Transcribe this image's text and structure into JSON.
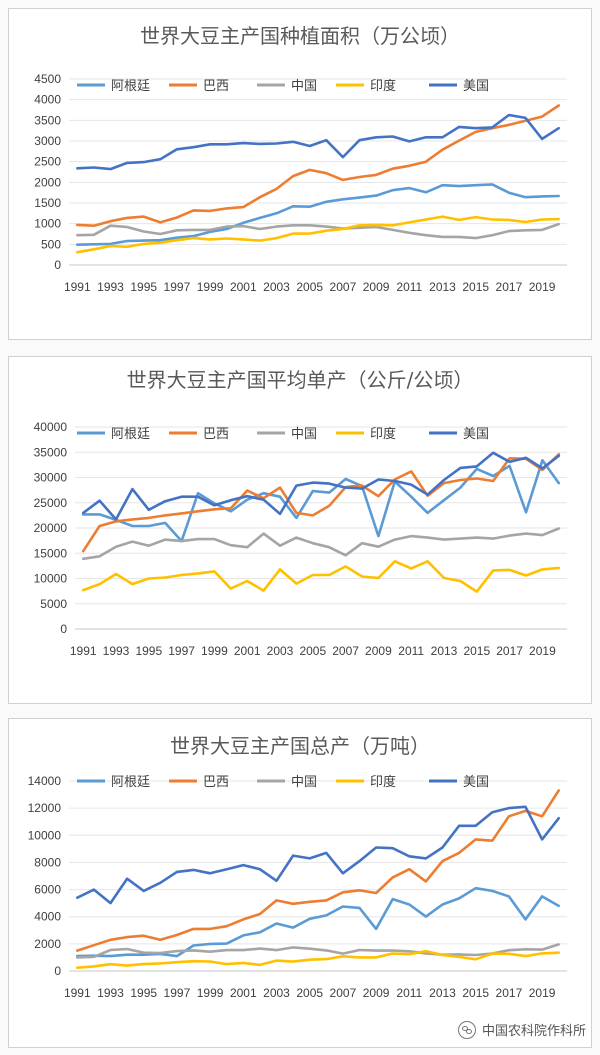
{
  "watermark": "中国农科院作科所",
  "colors": {
    "阿根廷": "#5B9BD5",
    "巴西": "#ED7D31",
    "中国": "#A5A5A5",
    "印度": "#FFC000",
    "美国": "#4472C4"
  },
  "chart_data": [
    {
      "type": "line",
      "title": "世界大豆主产国种植面积（万公顷）",
      "x": [
        1991,
        1992,
        1993,
        1994,
        1995,
        1996,
        1997,
        1998,
        1999,
        2000,
        2001,
        2002,
        2003,
        2004,
        2005,
        2006,
        2007,
        2008,
        2009,
        2010,
        2011,
        2012,
        2013,
        2014,
        2015,
        2016,
        2017,
        2018,
        2019,
        2020
      ],
      "xticks": [
        "1991",
        "1993",
        "1995",
        "1997",
        "1999",
        "2001",
        "2003",
        "2005",
        "2007",
        "2009",
        "2011",
        "2013",
        "2015",
        "2017",
        "2019"
      ],
      "ylim": [
        0,
        4500
      ],
      "yticks": [
        "0",
        "500",
        "1000",
        "1500",
        "2000",
        "2500",
        "3000",
        "3500",
        "4000",
        "4500"
      ],
      "legend": "top",
      "grid": true,
      "series": [
        {
          "name": "阿根廷",
          "values": [
            490,
            500,
            510,
            580,
            590,
            600,
            660,
            700,
            800,
            870,
            1020,
            1140,
            1250,
            1420,
            1410,
            1530,
            1590,
            1630,
            1680,
            1810,
            1860,
            1760,
            1930,
            1910,
            1930,
            1950,
            1750,
            1640,
            1660,
            1670
          ]
        },
        {
          "name": "巴西",
          "values": [
            970,
            950,
            1060,
            1140,
            1170,
            1030,
            1150,
            1320,
            1310,
            1370,
            1400,
            1640,
            1840,
            2150,
            2300,
            2220,
            2060,
            2130,
            2180,
            2330,
            2400,
            2500,
            2790,
            3010,
            3220,
            3310,
            3390,
            3490,
            3590,
            3860
          ]
        },
        {
          "name": "中国",
          "values": [
            720,
            730,
            950,
            920,
            810,
            750,
            840,
            850,
            850,
            930,
            940,
            870,
            930,
            960,
            960,
            930,
            880,
            900,
            920,
            850,
            780,
            720,
            680,
            680,
            650,
            720,
            820,
            840,
            850,
            990
          ]
        },
        {
          "name": "印度",
          "values": [
            310,
            380,
            460,
            440,
            510,
            540,
            600,
            650,
            620,
            640,
            620,
            590,
            650,
            760,
            760,
            830,
            870,
            960,
            970,
            960,
            1030,
            1100,
            1170,
            1090,
            1160,
            1100,
            1090,
            1040,
            1100,
            1110
          ]
        },
        {
          "name": "美国",
          "values": [
            2340,
            2360,
            2320,
            2470,
            2490,
            2560,
            2800,
            2850,
            2920,
            2920,
            2950,
            2930,
            2940,
            2980,
            2880,
            3020,
            2610,
            3020,
            3090,
            3110,
            2990,
            3090,
            3090,
            3340,
            3310,
            3330,
            3630,
            3560,
            3050,
            3310
          ]
        }
      ]
    },
    {
      "type": "line",
      "title": "世界大豆主产国平均单产（公斤/公顷）",
      "x": [
        1991,
        1992,
        1993,
        1994,
        1995,
        1996,
        1997,
        1998,
        1999,
        2000,
        2001,
        2002,
        2003,
        2004,
        2005,
        2006,
        2007,
        2008,
        2009,
        2010,
        2011,
        2012,
        2013,
        2014,
        2015,
        2016,
        2017,
        2018,
        2019,
        2020
      ],
      "xticks": [
        "1991",
        "1993",
        "1995",
        "1997",
        "1999",
        "2001",
        "2003",
        "2005",
        "2007",
        "2009",
        "2011",
        "2013",
        "2015",
        "2017",
        "2019"
      ],
      "ylim": [
        0,
        40000
      ],
      "yticks": [
        "0",
        "5000",
        "10000",
        "15000",
        "20000",
        "25000",
        "30000",
        "35000",
        "40000"
      ],
      "legend": "top",
      "grid": true,
      "series": [
        {
          "name": "阿根廷",
          "values": [
            22700,
            22700,
            21600,
            20400,
            20400,
            21000,
            17400,
            26900,
            24900,
            23300,
            25600,
            26900,
            26200,
            22000,
            27300,
            27000,
            29700,
            28300,
            18400,
            29200,
            26200,
            23000,
            25500,
            28000,
            31700,
            30300,
            32300,
            23100,
            33400,
            28900
          ]
        },
        {
          "name": "巴西",
          "values": [
            15400,
            20400,
            21300,
            21700,
            22000,
            22500,
            22900,
            23300,
            23700,
            23900,
            27400,
            25900,
            28000,
            23000,
            22500,
            24400,
            28100,
            28400,
            26300,
            29600,
            31200,
            26400,
            28900,
            29500,
            29800,
            29300,
            33800,
            33700,
            31500,
            34600
          ]
        },
        {
          "name": "中国",
          "values": [
            13900,
            14400,
            16300,
            17300,
            16500,
            17700,
            17400,
            17800,
            17800,
            16600,
            16200,
            18900,
            16500,
            18100,
            17000,
            16200,
            14600,
            17000,
            16300,
            17700,
            18400,
            18100,
            17700,
            17900,
            18100,
            17900,
            18500,
            18900,
            18600,
            19900
          ]
        },
        {
          "name": "印度",
          "values": [
            7700,
            8900,
            10900,
            8900,
            10000,
            10200,
            10700,
            11000,
            11400,
            8000,
            9500,
            7600,
            11800,
            9000,
            10700,
            10700,
            12400,
            10400,
            10100,
            13400,
            12000,
            13400,
            10100,
            9500,
            7400,
            11600,
            11700,
            10600,
            11800,
            12100
          ]
        },
        {
          "name": "美国",
          "values": [
            23000,
            25400,
            21700,
            27700,
            23600,
            25300,
            26200,
            26200,
            24500,
            25500,
            26300,
            25600,
            22800,
            28400,
            29000,
            28800,
            28000,
            27800,
            29600,
            29300,
            28600,
            26600,
            29500,
            31900,
            32200,
            34900,
            33100,
            33900,
            31800,
            34300
          ]
        }
      ]
    },
    {
      "type": "line",
      "title": "世界大豆主产国总产（万吨）",
      "x": [
        1991,
        1992,
        1993,
        1994,
        1995,
        1996,
        1997,
        1998,
        1999,
        2000,
        2001,
        2002,
        2003,
        2004,
        2005,
        2006,
        2007,
        2008,
        2009,
        2010,
        2011,
        2012,
        2013,
        2014,
        2015,
        2016,
        2017,
        2018,
        2019,
        2020
      ],
      "xticks": [
        "1991",
        "1993",
        "1995",
        "1997",
        "1999",
        "2001",
        "2003",
        "2005",
        "2007",
        "2009",
        "2011",
        "2013",
        "2015",
        "2017",
        "2019"
      ],
      "ylim": [
        0,
        14000
      ],
      "yticks": [
        "0",
        "2000",
        "4000",
        "6000",
        "8000",
        "10000",
        "12000",
        "14000"
      ],
      "legend": "top",
      "grid": true,
      "series": [
        {
          "name": "阿根廷",
          "values": [
            1100,
            1130,
            1100,
            1200,
            1200,
            1250,
            1100,
            1880,
            2000,
            2020,
            2620,
            2850,
            3500,
            3200,
            3850,
            4100,
            4750,
            4650,
            3100,
            5300,
            4900,
            4010,
            4900,
            5350,
            6100,
            5900,
            5500,
            3800,
            5500,
            4800
          ]
        },
        {
          "name": "巴西",
          "values": [
            1500,
            1900,
            2300,
            2500,
            2600,
            2300,
            2650,
            3100,
            3100,
            3300,
            3800,
            4200,
            5200,
            4950,
            5100,
            5200,
            5800,
            5950,
            5750,
            6900,
            7500,
            6600,
            8100,
            8700,
            9700,
            9600,
            11400,
            11800,
            11400,
            13300
          ]
        },
        {
          "name": "中国",
          "values": [
            1000,
            1050,
            1550,
            1620,
            1350,
            1320,
            1470,
            1520,
            1420,
            1540,
            1540,
            1650,
            1540,
            1740,
            1640,
            1520,
            1280,
            1550,
            1500,
            1510,
            1450,
            1300,
            1200,
            1220,
            1180,
            1290,
            1530,
            1600,
            1580,
            1960
          ]
        },
        {
          "name": "印度",
          "values": [
            240,
            340,
            500,
            400,
            510,
            560,
            650,
            720,
            700,
            510,
            600,
            450,
            770,
            690,
            830,
            880,
            1080,
            1000,
            1000,
            1290,
            1240,
            1470,
            1180,
            1040,
            860,
            1280,
            1270,
            1100,
            1300,
            1350
          ]
        },
        {
          "name": "美国",
          "values": [
            5400,
            6000,
            5000,
            6800,
            5900,
            6500,
            7300,
            7450,
            7200,
            7500,
            7800,
            7500,
            6650,
            8500,
            8300,
            8700,
            7200,
            8100,
            9100,
            9050,
            8450,
            8300,
            9100,
            10700,
            10700,
            11700,
            12000,
            12100,
            9700,
            11250
          ]
        }
      ]
    }
  ]
}
